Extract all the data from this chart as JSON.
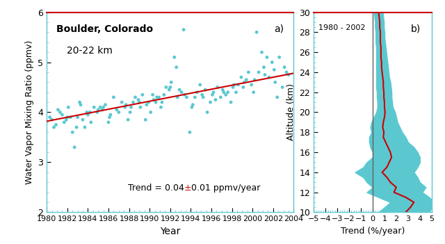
{
  "left_panel": {
    "title": "Boulder, Colorado",
    "subtitle": "20-22 km",
    "xlabel": "Year",
    "ylabel": "Water Vapor Mixing Ratio (ppmv)",
    "label_a": "a)",
    "xlim": [
      1980,
      2004
    ],
    "ylim": [
      2,
      6
    ],
    "xticks": [
      1980,
      1982,
      1984,
      1986,
      1988,
      1990,
      1992,
      1994,
      1996,
      1998,
      2000,
      2002,
      2004
    ],
    "yticks": [
      2,
      3,
      4,
      5,
      6
    ],
    "trend_color": "#cc0000",
    "scatter_color": "#5bc8d0",
    "trend_intercept": 3.82,
    "trend_slope": 0.04,
    "trend_ref_year": 1980,
    "scatter_x": [
      1980.3,
      1980.5,
      1980.9,
      1981.1,
      1981.5,
      1981.7,
      1981.9,
      1982.1,
      1982.3,
      1982.5,
      1982.7,
      1982.9,
      1983.0,
      1983.2,
      1983.5,
      1983.7,
      1983.9,
      1984.0,
      1984.3,
      1984.6,
      1984.9,
      1985.0,
      1985.2,
      1985.4,
      1985.7,
      1986.0,
      1986.2,
      1986.5,
      1986.8,
      1987.0,
      1987.3,
      1987.6,
      1987.9,
      1988.1,
      1988.4,
      1988.6,
      1988.9,
      1989.1,
      1989.3,
      1989.6,
      1989.9,
      1990.1,
      1990.3,
      1990.6,
      1990.9,
      1991.1,
      1991.4,
      1991.6,
      1991.9,
      1992.1,
      1992.4,
      1992.6,
      1992.9,
      1993.1,
      1993.3,
      1993.6,
      1993.9,
      1994.1,
      1994.4,
      1994.6,
      1994.9,
      1995.1,
      1995.4,
      1995.6,
      1995.9,
      1996.1,
      1996.4,
      1996.6,
      1996.9,
      1997.1,
      1997.4,
      1997.6,
      1997.9,
      1998.1,
      1998.4,
      1998.6,
      1998.9,
      1999.1,
      1999.4,
      1999.6,
      1999.9,
      2000.1,
      2000.4,
      2000.6,
      2000.9,
      2001.1,
      2001.4,
      2001.6,
      2001.9,
      2002.1,
      2002.4,
      2002.6,
      2002.9,
      2003.1,
      2003.3,
      2003.5,
      1980.7,
      1981.3,
      1982.0,
      1983.3,
      1984.2,
      1985.5,
      1986.1,
      1987.7,
      1988.2,
      1989.0,
      1989.7,
      1990.4,
      1990.7,
      1991.2,
      1992.0,
      1992.7,
      1993.4,
      1994.2,
      1995.2,
      1996.2,
      1997.2,
      1998.2,
      1999.2,
      2000.2,
      2001.2,
      2002.2
    ],
    "scatter_y": [
      3.9,
      3.85,
      3.75,
      4.05,
      3.95,
      3.8,
      3.85,
      4.1,
      3.9,
      3.6,
      3.3,
      3.7,
      3.9,
      4.2,
      3.85,
      3.7,
      4.0,
      3.95,
      3.8,
      4.1,
      4.0,
      4.05,
      4.1,
      4.05,
      4.15,
      3.8,
      3.95,
      4.3,
      4.05,
      4.0,
      4.2,
      4.1,
      3.85,
      4.0,
      4.2,
      4.3,
      4.25,
      4.1,
      4.35,
      3.85,
      4.2,
      4.0,
      4.35,
      4.2,
      4.3,
      4.1,
      4.35,
      4.5,
      4.45,
      4.6,
      5.1,
      4.9,
      4.45,
      4.4,
      5.65,
      4.3,
      3.6,
      4.1,
      4.3,
      4.4,
      4.55,
      4.35,
      4.45,
      4.0,
      4.2,
      4.35,
      4.25,
      4.5,
      4.3,
      4.45,
      4.35,
      4.4,
      4.2,
      4.5,
      4.4,
      4.55,
      4.7,
      4.5,
      4.65,
      4.8,
      4.55,
      4.4,
      5.6,
      4.8,
      5.2,
      4.9,
      5.1,
      4.7,
      5.0,
      4.85,
      4.3,
      5.1,
      4.5,
      4.9,
      4.8,
      4.75,
      3.7,
      4.0,
      3.9,
      4.15,
      4.0,
      4.1,
      3.9,
      4.15,
      4.1,
      4.2,
      4.15,
      4.25,
      4.3,
      4.2,
      4.5,
      4.3,
      4.35,
      4.15,
      4.3,
      4.4,
      4.4,
      4.55,
      4.6,
      4.65,
      4.75,
      4.6
    ]
  },
  "right_panel": {
    "label_b": "b)",
    "date_label": "1980 - 2002",
    "xlabel": "Trend (%/year)",
    "ylabel": "Altitude (km)",
    "xlim": [
      -5,
      5
    ],
    "ylim": [
      10,
      30
    ],
    "xticks": [
      -5,
      -4,
      -3,
      -2,
      -1,
      0,
      1,
      2,
      3,
      4,
      5
    ],
    "yticks": [
      10,
      12,
      14,
      16,
      18,
      20,
      22,
      24,
      26,
      28,
      30
    ],
    "vline_color": "#606060",
    "fill_color": "#5bc8d0",
    "line_color": "#cc0000",
    "altitudes": [
      10.0,
      10.5,
      11.0,
      11.5,
      12.0,
      12.5,
      13.0,
      13.5,
      14.0,
      14.5,
      15.0,
      15.5,
      16.0,
      16.5,
      17.0,
      17.5,
      18.0,
      18.5,
      19.0,
      19.5,
      20.0,
      20.5,
      21.0,
      21.5,
      22.0,
      22.5,
      23.0,
      23.5,
      24.0,
      24.5,
      25.0,
      25.5,
      26.0,
      26.5,
      27.0,
      27.5,
      28.0,
      28.5,
      29.0,
      29.5,
      30.0
    ],
    "trend_center": [
      2.8,
      3.2,
      3.5,
      2.8,
      1.8,
      2.0,
      1.5,
      1.2,
      0.8,
      1.2,
      1.4,
      1.6,
      1.5,
      1.3,
      1.1,
      0.9,
      0.95,
      0.85,
      0.9,
      1.0,
      1.05,
      1.0,
      1.0,
      0.95,
      0.95,
      0.9,
      0.9,
      0.85,
      0.8,
      0.75,
      0.75,
      0.7,
      0.7,
      0.7,
      0.65,
      0.65,
      0.65,
      0.6,
      0.6,
      0.55,
      0.5
    ],
    "trend_lower": [
      0.5,
      1.0,
      1.5,
      0.5,
      -0.5,
      0.0,
      -0.5,
      -0.8,
      -1.5,
      -0.8,
      -0.5,
      0.0,
      0.0,
      -0.2,
      -0.3,
      -0.3,
      -0.1,
      -0.2,
      -0.1,
      0.1,
      0.3,
      0.4,
      0.4,
      0.35,
      0.35,
      0.3,
      0.3,
      0.3,
      0.3,
      0.3,
      0.3,
      0.3,
      0.3,
      0.3,
      0.25,
      0.25,
      0.25,
      0.2,
      0.2,
      0.15,
      0.1
    ],
    "trend_upper": [
      4.8,
      5.0,
      5.2,
      4.8,
      4.2,
      4.5,
      4.0,
      3.8,
      3.5,
      3.8,
      4.0,
      4.0,
      3.8,
      3.5,
      3.0,
      2.8,
      2.5,
      2.3,
      2.1,
      2.0,
      1.9,
      1.7,
      1.65,
      1.6,
      1.6,
      1.55,
      1.5,
      1.4,
      1.35,
      1.3,
      1.25,
      1.2,
      1.15,
      1.1,
      1.05,
      1.0,
      1.0,
      0.95,
      0.95,
      0.9,
      0.85
    ]
  },
  "bg_color": "#ffffff",
  "tick_color": "#5bc8d0",
  "spine_color": "#5bc8d0",
  "top_spine_color": "#cc0000"
}
